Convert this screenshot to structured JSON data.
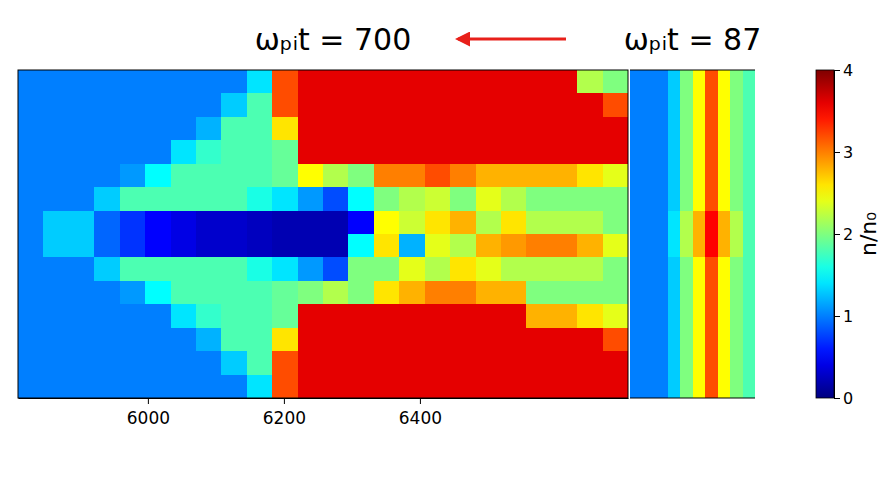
{
  "chart_data": {
    "type": "heatmap",
    "panels": [
      {
        "title": "ωₚᵢt = 700",
        "xlim": [
          5809,
          6706
        ],
        "xticks": [
          6000,
          6200,
          6400
        ],
        "cells": [
          [
            1.0,
            1.0,
            1.0,
            1.0,
            1.0,
            1.0,
            1.0,
            1.0,
            1.0,
            1.4,
            3.2,
            3.6,
            3.6,
            3.6,
            3.6,
            3.6,
            3.6,
            3.6,
            3.6,
            3.6,
            3.6,
            3.6,
            2.2,
            2.0
          ],
          [
            1.0,
            1.0,
            1.0,
            1.0,
            1.0,
            1.0,
            1.0,
            1.0,
            1.3,
            1.8,
            3.2,
            3.6,
            3.6,
            3.6,
            3.6,
            3.6,
            3.6,
            3.6,
            3.6,
            3.6,
            3.6,
            3.6,
            3.6,
            3.2
          ],
          [
            1.0,
            1.0,
            1.0,
            1.0,
            1.0,
            1.0,
            1.0,
            1.2,
            1.8,
            1.8,
            2.6,
            3.6,
            3.6,
            3.6,
            3.6,
            3.6,
            3.6,
            3.6,
            3.6,
            3.6,
            3.6,
            3.6,
            3.6,
            3.6
          ],
          [
            1.0,
            1.0,
            1.0,
            1.0,
            1.0,
            1.0,
            1.4,
            1.7,
            1.8,
            1.8,
            1.9,
            3.6,
            3.6,
            3.6,
            3.6,
            3.6,
            3.6,
            3.6,
            3.6,
            3.6,
            3.6,
            3.6,
            3.6,
            3.6
          ],
          [
            1.0,
            1.0,
            1.0,
            1.0,
            1.1,
            1.5,
            1.8,
            1.8,
            1.8,
            1.8,
            1.9,
            2.5,
            2.2,
            2.0,
            3.0,
            3.0,
            3.2,
            3.0,
            2.8,
            2.8,
            2.8,
            2.8,
            2.6,
            2.4
          ],
          [
            1.0,
            1.0,
            1.0,
            1.3,
            1.8,
            1.8,
            1.8,
            1.8,
            1.8,
            1.6,
            1.4,
            1.1,
            0.8,
            1.5,
            2.0,
            2.2,
            2.3,
            2.0,
            2.4,
            2.2,
            2.0,
            2.0,
            2.0,
            2.0
          ],
          [
            1.0,
            1.3,
            1.3,
            0.9,
            0.7,
            0.5,
            0.4,
            0.3,
            0.3,
            0.25,
            0.2,
            0.2,
            0.2,
            0.5,
            2.5,
            2.3,
            2.6,
            2.8,
            2.2,
            2.6,
            2.2,
            2.2,
            2.2,
            2.0
          ],
          [
            1.0,
            1.3,
            1.3,
            0.9,
            0.7,
            0.5,
            0.4,
            0.3,
            0.3,
            0.25,
            0.2,
            0.2,
            0.2,
            1.5,
            2.6,
            1.2,
            2.4,
            2.2,
            2.8,
            2.9,
            3.0,
            3.0,
            2.8,
            2.4
          ],
          [
            1.0,
            1.0,
            1.0,
            1.3,
            1.8,
            1.8,
            1.8,
            1.8,
            1.8,
            1.6,
            1.4,
            1.1,
            0.8,
            2.0,
            2.0,
            2.4,
            2.2,
            2.6,
            2.4,
            2.2,
            2.2,
            2.2,
            2.2,
            2.0
          ],
          [
            1.0,
            1.0,
            1.0,
            1.0,
            1.1,
            1.5,
            1.8,
            1.8,
            1.8,
            1.8,
            1.9,
            2.0,
            2.2,
            2.0,
            2.6,
            2.8,
            3.0,
            3.0,
            2.8,
            2.8,
            2.0,
            2.0,
            2.0,
            2.0
          ],
          [
            1.0,
            1.0,
            1.0,
            1.0,
            1.0,
            1.0,
            1.4,
            1.7,
            1.8,
            1.8,
            1.9,
            3.6,
            3.6,
            3.6,
            3.6,
            3.6,
            3.6,
            3.6,
            3.6,
            3.6,
            2.8,
            2.8,
            2.6,
            2.4
          ],
          [
            1.0,
            1.0,
            1.0,
            1.0,
            1.0,
            1.0,
            1.0,
            1.2,
            1.8,
            1.8,
            2.6,
            3.6,
            3.6,
            3.6,
            3.6,
            3.6,
            3.6,
            3.6,
            3.6,
            3.6,
            3.6,
            3.6,
            3.6,
            3.2
          ],
          [
            1.0,
            1.0,
            1.0,
            1.0,
            1.0,
            1.0,
            1.0,
            1.0,
            1.3,
            1.8,
            3.2,
            3.6,
            3.6,
            3.6,
            3.6,
            3.6,
            3.6,
            3.6,
            3.6,
            3.6,
            3.6,
            3.6,
            3.6,
            3.6
          ],
          [
            1.0,
            1.0,
            1.0,
            1.0,
            1.0,
            1.0,
            1.0,
            1.0,
            1.0,
            1.4,
            3.2,
            3.6,
            3.6,
            3.6,
            3.6,
            3.6,
            3.6,
            3.6,
            3.6,
            3.6,
            3.6,
            3.6,
            3.6,
            3.6
          ]
        ]
      },
      {
        "title": "ωₚᵢt = 87",
        "tick_labels": false,
        "cells": [
          [
            1.0,
            1.0,
            1.0,
            1.3,
            2.0,
            2.5,
            3.2,
            2.5,
            2.0,
            1.8
          ],
          [
            1.0,
            1.0,
            1.0,
            1.3,
            2.0,
            2.5,
            3.2,
            2.5,
            2.0,
            1.8
          ],
          [
            1.0,
            1.0,
            1.0,
            1.3,
            2.0,
            2.5,
            3.2,
            2.5,
            2.0,
            1.8
          ],
          [
            1.0,
            1.0,
            1.0,
            1.3,
            2.0,
            2.5,
            3.2,
            2.5,
            2.0,
            1.8
          ],
          [
            1.0,
            1.0,
            1.0,
            1.3,
            2.0,
            2.5,
            3.2,
            2.5,
            2.0,
            1.8
          ],
          [
            1.0,
            1.0,
            1.0,
            1.3,
            2.0,
            2.5,
            3.2,
            2.5,
            2.0,
            1.8
          ],
          [
            1.0,
            1.0,
            1.0,
            1.4,
            2.2,
            2.8,
            3.5,
            2.8,
            2.2,
            1.8
          ],
          [
            1.0,
            1.0,
            1.0,
            1.4,
            2.2,
            2.8,
            3.5,
            2.8,
            2.2,
            1.8
          ],
          [
            1.0,
            1.0,
            1.0,
            1.3,
            2.0,
            2.5,
            3.2,
            2.5,
            2.0,
            1.8
          ],
          [
            1.0,
            1.0,
            1.0,
            1.3,
            2.0,
            2.5,
            3.2,
            2.5,
            2.0,
            1.8
          ],
          [
            1.0,
            1.0,
            1.0,
            1.3,
            2.0,
            2.5,
            3.2,
            2.5,
            2.0,
            1.8
          ],
          [
            1.0,
            1.0,
            1.0,
            1.3,
            2.0,
            2.5,
            3.2,
            2.5,
            2.0,
            1.8
          ],
          [
            1.0,
            1.0,
            1.0,
            1.3,
            2.0,
            2.5,
            3.2,
            2.5,
            2.0,
            1.8
          ],
          [
            1.0,
            1.0,
            1.0,
            1.3,
            2.0,
            2.5,
            3.2,
            2.5,
            2.0,
            1.8
          ]
        ]
      }
    ],
    "colorbar": {
      "range": [
        0,
        4
      ],
      "ticks": [
        0,
        1,
        2,
        3,
        4
      ],
      "label": "n/n₀"
    }
  }
}
